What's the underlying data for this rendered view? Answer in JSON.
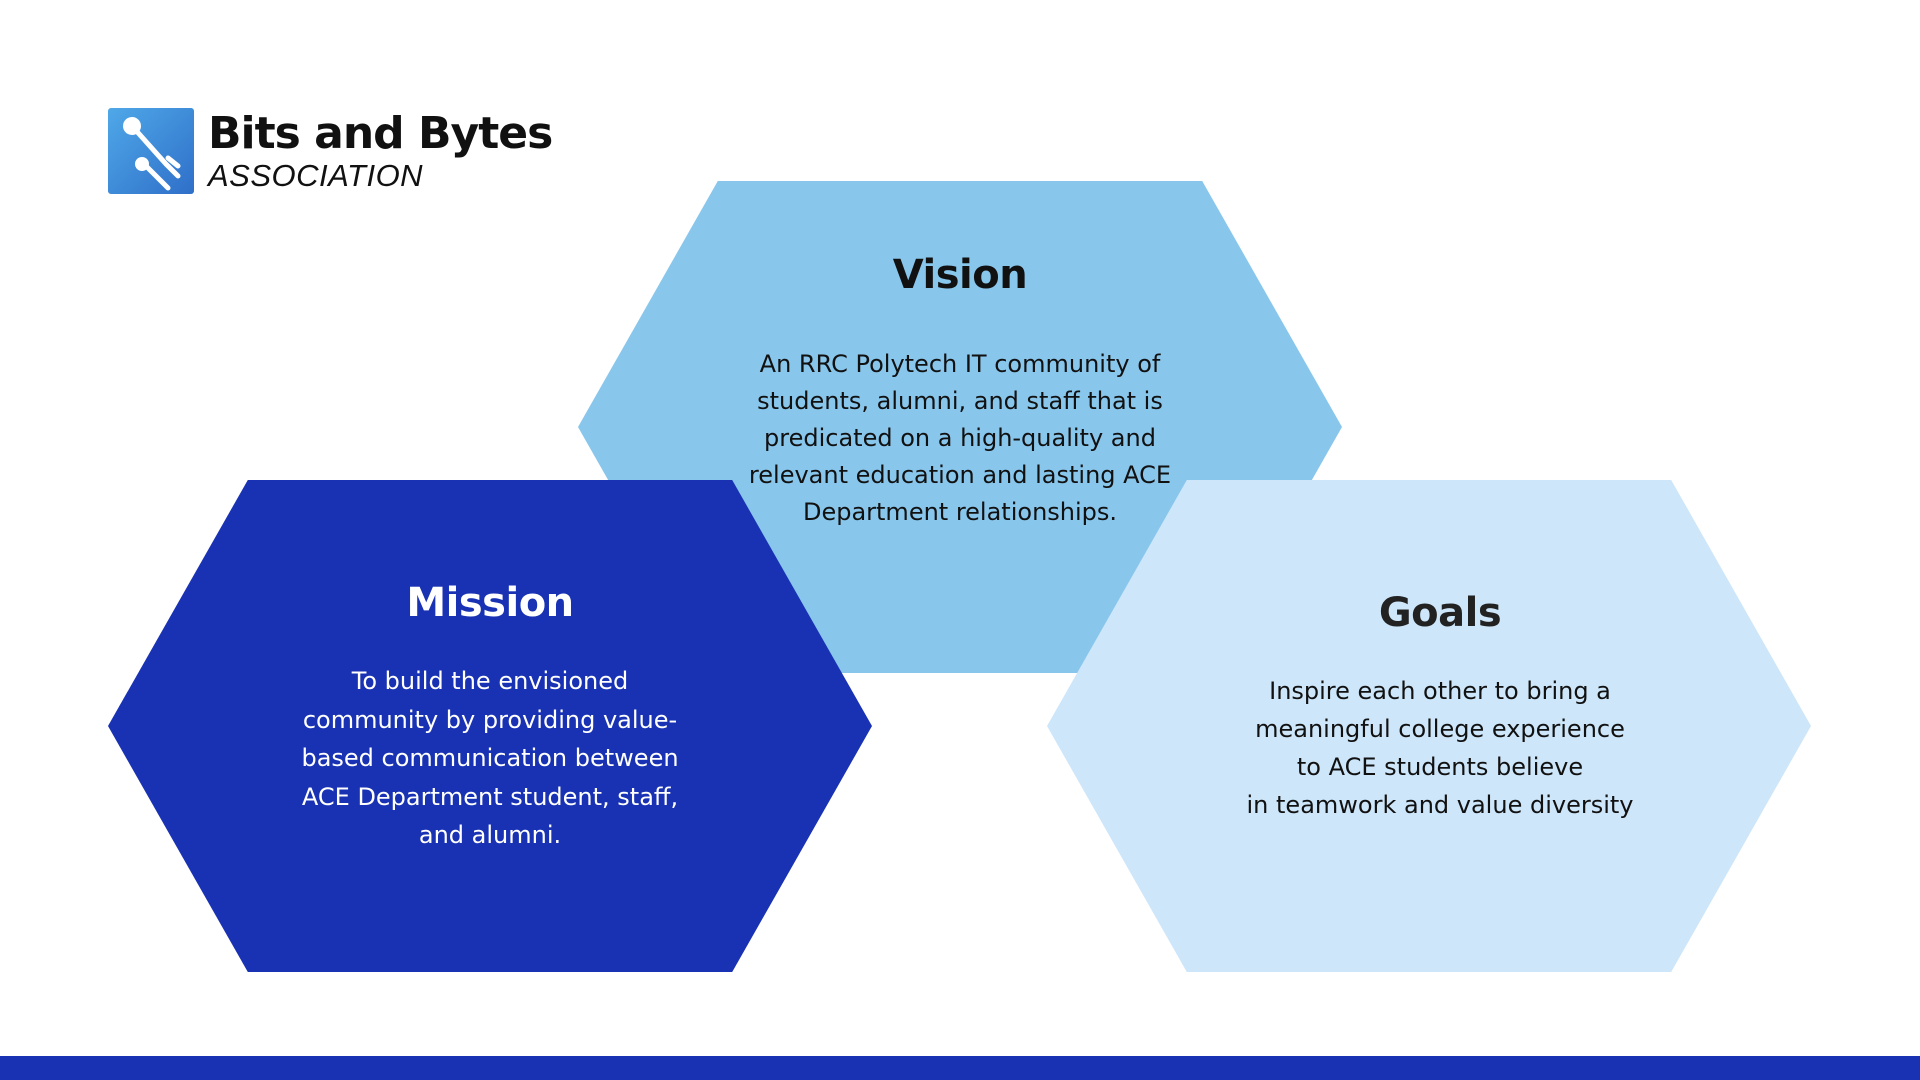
{
  "logo": {
    "title": "Bits and Bytes",
    "subtitle": "ASSOCIATION",
    "icon": "circuit-icon"
  },
  "vision": {
    "title": "Vision",
    "lines": [
      "An RRC Polytech IT community of",
      "students, alumni, and staff that is",
      "predicated on a high-quality and",
      "relevant education and lasting ACE",
      "Department relationships."
    ],
    "color": "#88c6ec"
  },
  "mission": {
    "title": "Mission",
    "lines": [
      "To build the envisioned",
      "community by providing value-",
      "based communication between",
      "ACE Department student, staff,",
      "and alumni."
    ],
    "color": "#1832b3"
  },
  "goals": {
    "title": "Goals",
    "lines": [
      "Inspire each other to bring a",
      "meaningful college experience",
      "to ACE students believe",
      "in teamwork and value diversity"
    ],
    "color": "#cde6f9"
  },
  "footer": {
    "color": "#1832b3"
  }
}
